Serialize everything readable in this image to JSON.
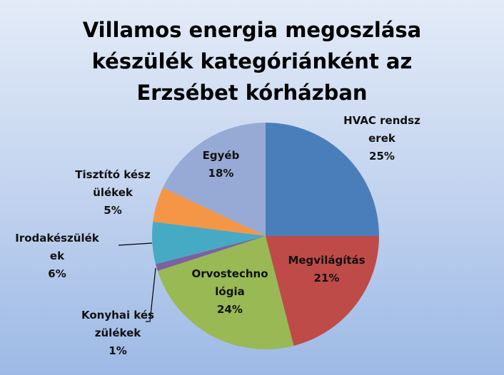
{
  "chart_data": {
    "type": "pie",
    "title": "Villamos energia megoszlása készülék kategóriánként az Erzsébet kórházban",
    "categories": [
      "HVAC rendszerek",
      "Megvilágítás",
      "Orvostechnológia",
      "Konyhai készülékek",
      "Irodakészülékek",
      "Tisztító készülékek",
      "Egyéb"
    ],
    "values": [
      25,
      21,
      24,
      1,
      6,
      5,
      18
    ],
    "value_labels": [
      "25%",
      "21%",
      "24%",
      "1%",
      "6%",
      "5%",
      "18%"
    ],
    "colors": [
      "#4a7ebb",
      "#be4b48",
      "#98b954",
      "#7d60a0",
      "#46aac5",
      "#f59646",
      "#97aad5"
    ]
  }
}
